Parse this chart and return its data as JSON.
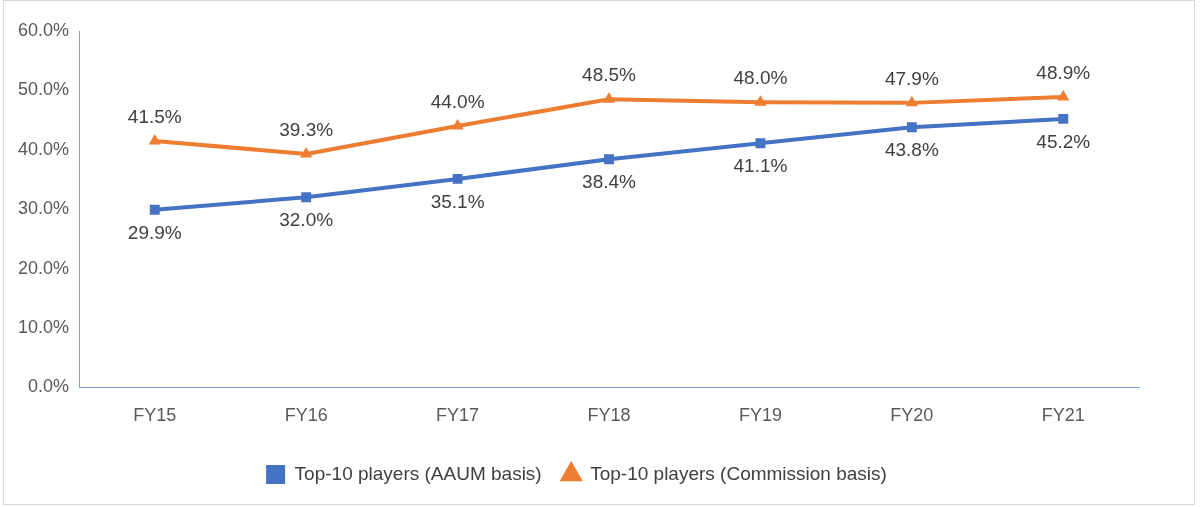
{
  "chart_data": {
    "type": "line",
    "categories": [
      "FY15",
      "FY16",
      "FY17",
      "FY18",
      "FY19",
      "FY20",
      "FY21"
    ],
    "series": [
      {
        "name": "Top-10 players (AAUM basis)",
        "color": "#4472c4",
        "marker": "square",
        "values": [
          29.9,
          32.0,
          35.1,
          38.4,
          41.1,
          43.8,
          45.2
        ],
        "value_labels": [
          "29.9%",
          "32.0%",
          "35.1%",
          "38.4%",
          "41.1%",
          "43.8%",
          "45.2%"
        ]
      },
      {
        "name": "Top-10 players (Commission basis)",
        "color": "#ed7d31",
        "marker": "triangle",
        "values": [
          41.5,
          39.3,
          44.0,
          48.5,
          48.0,
          47.9,
          48.9
        ],
        "value_labels": [
          "41.5%",
          "39.3%",
          "44.0%",
          "48.5%",
          "48.0%",
          "47.9%",
          "48.9%"
        ]
      }
    ],
    "ylim": [
      0,
      60
    ],
    "yticks": [
      {
        "value": 0,
        "label": "0.0%"
      },
      {
        "value": 10,
        "label": "10.0%"
      },
      {
        "value": 20,
        "label": "20.0%"
      },
      {
        "value": 30,
        "label": "30.0%"
      },
      {
        "value": 40,
        "label": "40.0%"
      },
      {
        "value": 50,
        "label": "50.0%"
      },
      {
        "value": 60,
        "label": "60.0%"
      }
    ],
    "grid": false,
    "legend": "bottom",
    "line_style": "solid"
  }
}
